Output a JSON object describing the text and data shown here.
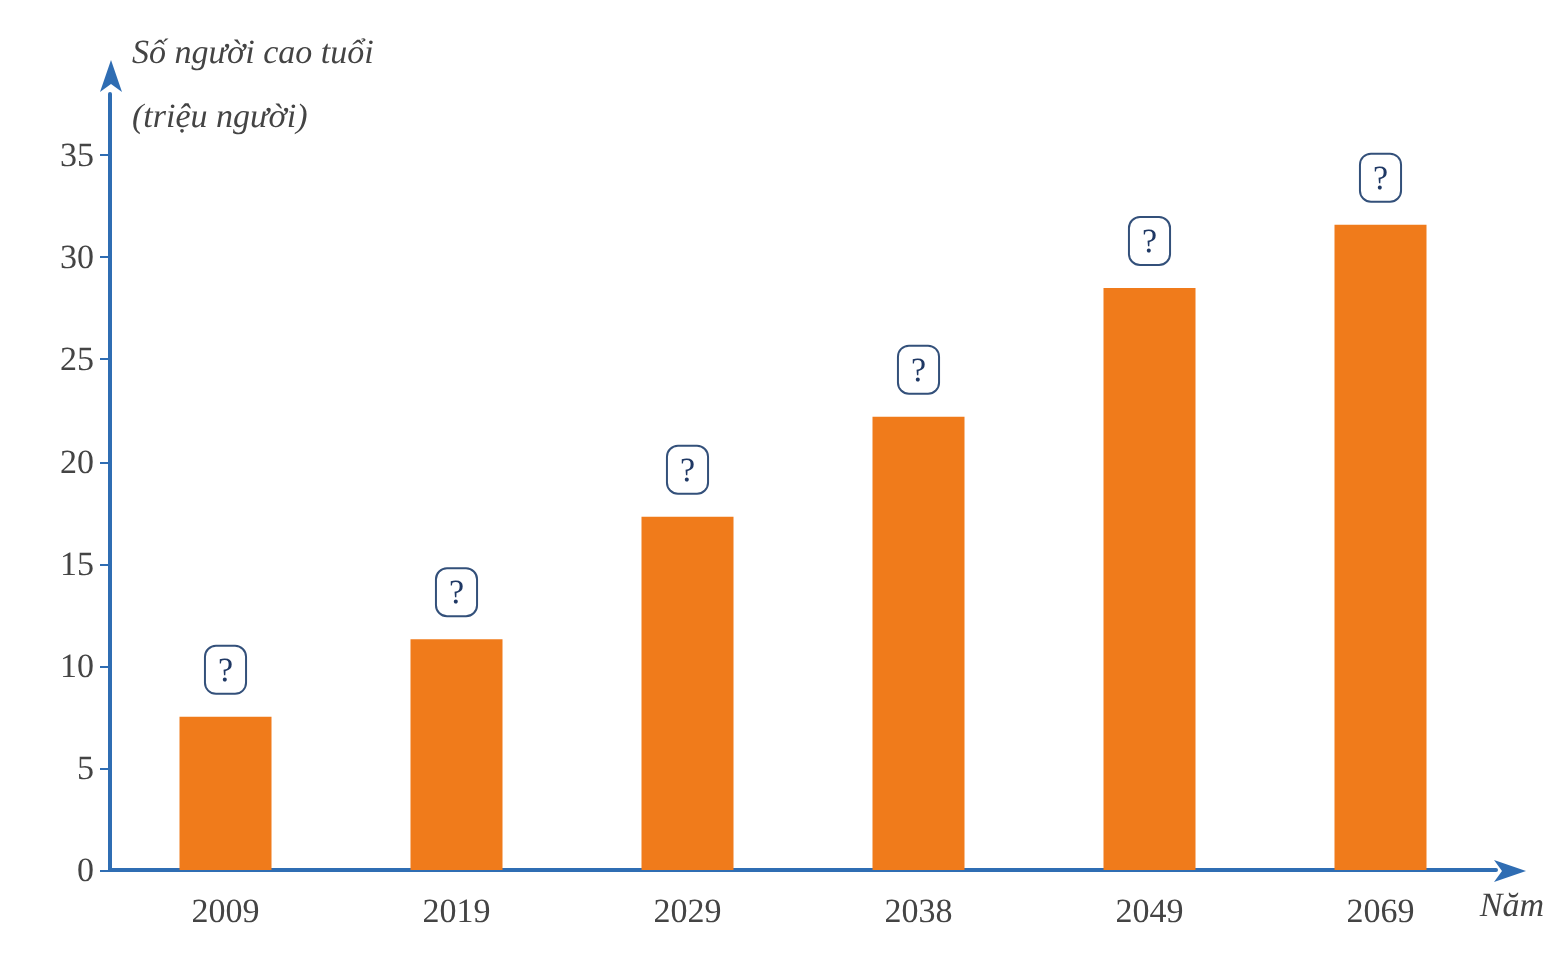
{
  "chart_data": {
    "type": "bar",
    "xlabel": "Năm",
    "ylabel": "Số người cao tuổi (triệu người)",
    "categories": [
      "2009",
      "2019",
      "2029",
      "2038",
      "2049",
      "2069"
    ],
    "values": [
      7.5,
      11.3,
      17.3,
      22.2,
      28.5,
      31.6
    ],
    "color": "#f07b1b",
    "value_labels": [
      "?",
      "?",
      "?",
      "?",
      "?",
      "?"
    ],
    "ylim": [
      0,
      38
    ],
    "yticks": [
      0,
      5,
      10,
      15,
      20,
      25,
      30,
      35
    ],
    "grid": false
  }
}
